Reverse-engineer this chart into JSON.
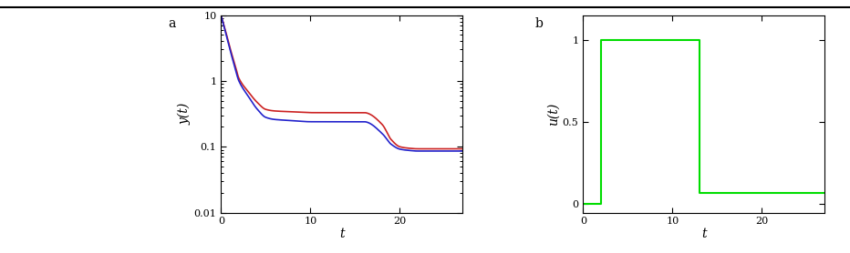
{
  "fig_width": 9.32,
  "fig_height": 2.78,
  "dpi": 100,
  "background_color": "#ffffff",
  "top_bar_height": 0.08,
  "plot_a": {
    "label": "a",
    "ylabel": "y(t)",
    "xlabel": "t",
    "xlim": [
      0,
      27
    ],
    "ylim_log": [
      0.01,
      10
    ],
    "yticks": [
      0.01,
      0.1,
      1,
      10
    ],
    "ytick_labels": [
      "0.01",
      "0.1",
      "1",
      "10"
    ],
    "xticks": [
      0,
      10,
      20
    ],
    "blue_color": "#2222cc",
    "red_color": "#cc2222",
    "line_width": 1.2,
    "blue_t": [
      0,
      0.5,
      1,
      1.5,
      2,
      3,
      4,
      5,
      6,
      8,
      10,
      12,
      14,
      16,
      18,
      19,
      20,
      21,
      22,
      23,
      25,
      27
    ],
    "blue_y": [
      10,
      5.5,
      3.0,
      1.7,
      1.0,
      0.6,
      0.38,
      0.28,
      0.26,
      0.25,
      0.24,
      0.24,
      0.24,
      0.24,
      0.16,
      0.11,
      0.092,
      0.088,
      0.086,
      0.086,
      0.086,
      0.086
    ],
    "red_t": [
      0,
      0.5,
      1,
      1.5,
      2,
      3,
      4,
      5,
      6,
      8,
      10,
      12,
      14,
      16,
      18,
      19,
      20,
      21,
      22,
      23,
      25,
      27
    ],
    "red_y": [
      10,
      5.8,
      3.2,
      1.9,
      1.1,
      0.7,
      0.48,
      0.37,
      0.35,
      0.34,
      0.33,
      0.33,
      0.33,
      0.33,
      0.22,
      0.13,
      0.1,
      0.095,
      0.093,
      0.093,
      0.093,
      0.093
    ]
  },
  "plot_b": {
    "label": "b",
    "ylabel": "u(t)",
    "xlabel": "t",
    "xlim": [
      0,
      27
    ],
    "ylim": [
      -0.05,
      1.15
    ],
    "yticks": [
      0,
      0.5,
      1
    ],
    "ytick_labels": [
      "0",
      "0.5",
      "1"
    ],
    "xticks": [
      0,
      10,
      20
    ],
    "green_color": "#00dd00",
    "line_width": 1.5,
    "u_t": [
      0,
      2.0,
      2.0,
      13.0,
      13.0,
      27
    ],
    "u_y": [
      0,
      0,
      1,
      1,
      0.07,
      0.07
    ]
  }
}
